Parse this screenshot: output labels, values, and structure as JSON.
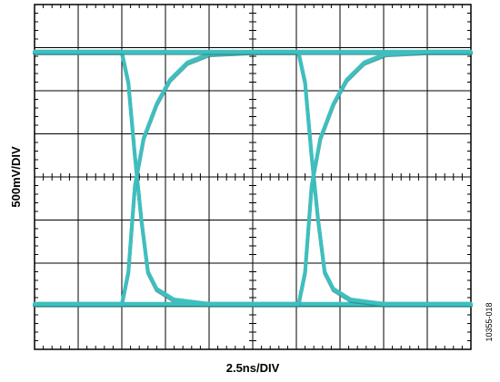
{
  "chart_data": {
    "type": "line",
    "title": "",
    "xlabel": "2.5ns/DIV",
    "ylabel": "500mV/DIV",
    "figure_id": "10355-018",
    "x_divisions": 10,
    "y_divisions": 8,
    "xlim": [
      0,
      10
    ],
    "ylim": [
      0,
      8
    ],
    "grid": true,
    "trace_color": "#3fbfbf",
    "trace_shadow_color": "#2a8f8c",
    "series": [
      {
        "values": [
          [
            0,
            6.9
          ],
          [
            2.0,
            6.9
          ],
          [
            2.15,
            6.2
          ],
          [
            2.3,
            4.5
          ],
          [
            2.45,
            3.0
          ],
          [
            2.6,
            1.8
          ],
          [
            2.8,
            1.4
          ],
          [
            3.2,
            1.15
          ],
          [
            4.0,
            1.05
          ],
          [
            5.0,
            1.05
          ],
          [
            10,
            1.05
          ]
        ]
      },
      {
        "values": [
          [
            0,
            1.05
          ],
          [
            2.0,
            1.05
          ],
          [
            2.15,
            1.8
          ],
          [
            2.3,
            3.8
          ],
          [
            2.5,
            4.9
          ],
          [
            2.8,
            5.7
          ],
          [
            3.1,
            6.25
          ],
          [
            3.5,
            6.65
          ],
          [
            4.0,
            6.85
          ],
          [
            5.0,
            6.9
          ],
          [
            10,
            6.9
          ]
        ]
      },
      {
        "values": [
          [
            0,
            6.9
          ],
          [
            6.05,
            6.9
          ],
          [
            6.2,
            6.2
          ],
          [
            6.35,
            4.5
          ],
          [
            6.5,
            3.0
          ],
          [
            6.65,
            1.8
          ],
          [
            6.85,
            1.4
          ],
          [
            7.25,
            1.15
          ],
          [
            8.0,
            1.05
          ],
          [
            10,
            1.05
          ]
        ]
      },
      {
        "values": [
          [
            0,
            1.05
          ],
          [
            6.05,
            1.05
          ],
          [
            6.2,
            1.8
          ],
          [
            6.35,
            3.8
          ],
          [
            6.55,
            4.9
          ],
          [
            6.85,
            5.7
          ],
          [
            7.15,
            6.25
          ],
          [
            7.55,
            6.65
          ],
          [
            8.05,
            6.85
          ],
          [
            9.0,
            6.9
          ],
          [
            10,
            6.9
          ]
        ]
      }
    ]
  }
}
